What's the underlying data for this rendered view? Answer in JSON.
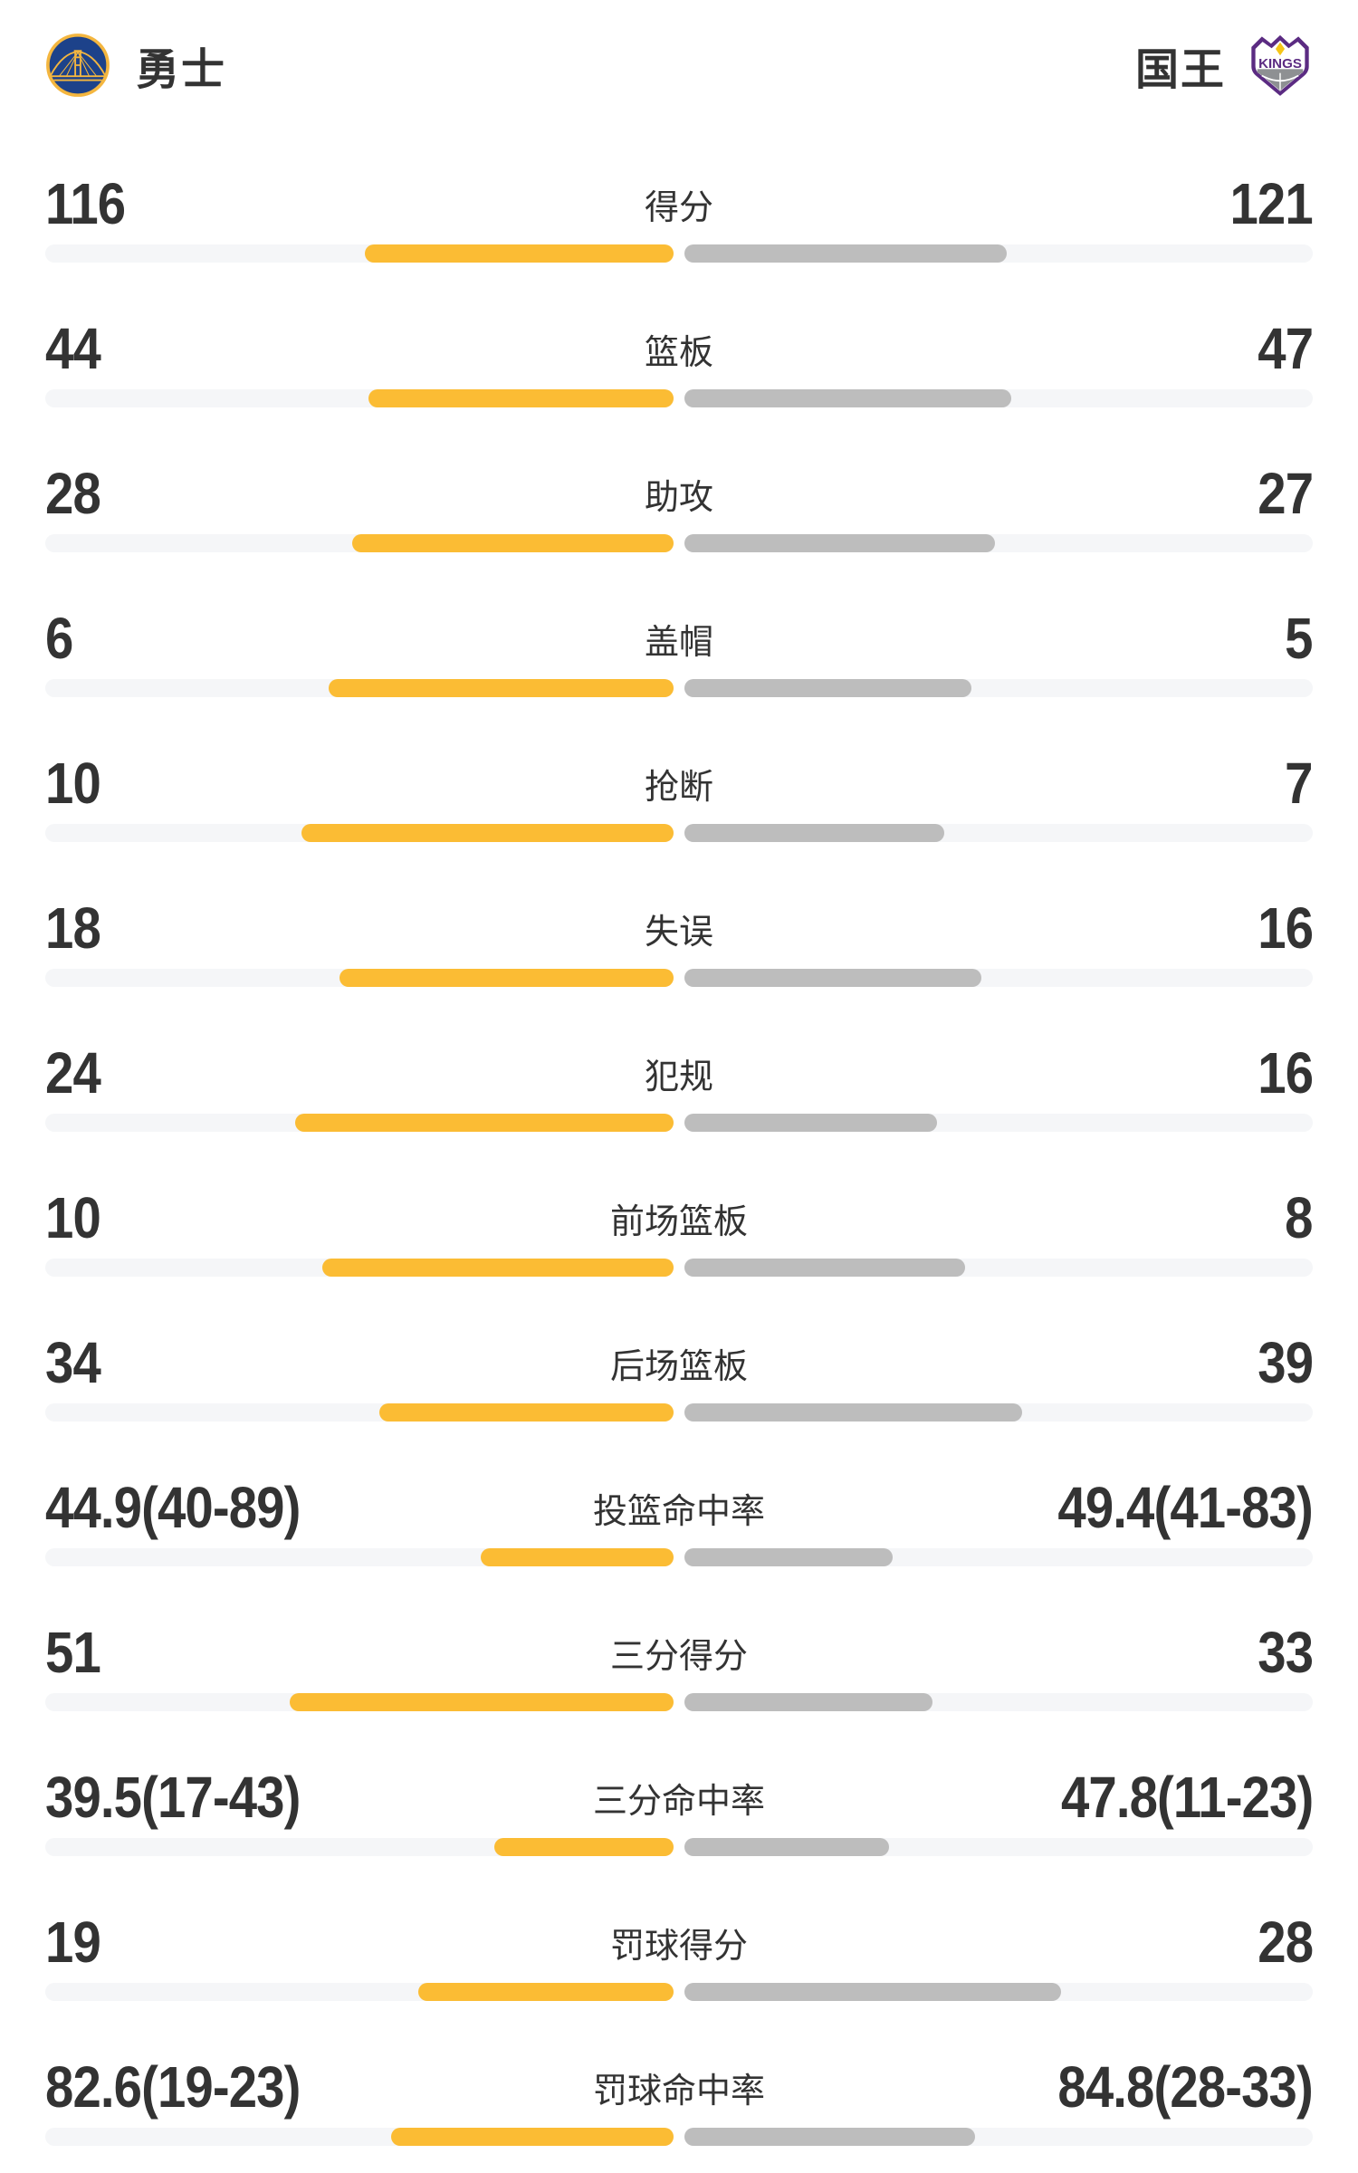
{
  "header": {
    "home": {
      "name": "勇士"
    },
    "away": {
      "name": "国王",
      "logo_text": "KINGS"
    }
  },
  "colors": {
    "home_bar": "#FBBC34",
    "away_bar": "#BDBDBD",
    "track": "#F5F6F8",
    "text": "#333333",
    "warriors_blue": "#1D428A",
    "warriors_gold": "#F4B63F",
    "kings_purple": "#5B2B82",
    "kings_gray": "#8E9093",
    "kings_yellow": "#F5C518"
  },
  "chart_data": {
    "type": "bar",
    "layout": "horizontal-paired-center-out",
    "legend_position": "none",
    "grid": false,
    "teams": [
      "勇士",
      "国王"
    ],
    "rows": [
      {
        "label": "得分",
        "left_display": "116",
        "right_display": "121",
        "left_value": 116,
        "right_value": 121,
        "left_bar_pct": 49.2,
        "right_bar_pct": 51.3
      },
      {
        "label": "篮板",
        "left_display": "44",
        "right_display": "47",
        "left_value": 44,
        "right_value": 47,
        "left_bar_pct": 48.6,
        "right_bar_pct": 52.0
      },
      {
        "label": "助攻",
        "left_display": "28",
        "right_display": "27",
        "left_value": 28,
        "right_value": 27,
        "left_bar_pct": 51.2,
        "right_bar_pct": 49.4
      },
      {
        "label": "盖帽",
        "left_display": "6",
        "right_display": "5",
        "left_value": 6,
        "right_value": 5,
        "left_bar_pct": 54.9,
        "right_bar_pct": 45.7
      },
      {
        "label": "抢断",
        "left_display": "10",
        "right_display": "7",
        "left_value": 10,
        "right_value": 7,
        "left_bar_pct": 59.2,
        "right_bar_pct": 41.4
      },
      {
        "label": "失误",
        "left_display": "18",
        "right_display": "16",
        "left_value": 18,
        "right_value": 16,
        "left_bar_pct": 53.2,
        "right_bar_pct": 47.3
      },
      {
        "label": "犯规",
        "left_display": "24",
        "right_display": "16",
        "left_value": 24,
        "right_value": 16,
        "left_bar_pct": 60.3,
        "right_bar_pct": 40.2
      },
      {
        "label": "前场篮板",
        "left_display": "10",
        "right_display": "8",
        "left_value": 10,
        "right_value": 8,
        "left_bar_pct": 55.9,
        "right_bar_pct": 44.7
      },
      {
        "label": "后场篮板",
        "left_display": "34",
        "right_display": "39",
        "left_value": 34,
        "right_value": 39,
        "left_bar_pct": 46.9,
        "right_bar_pct": 53.7
      },
      {
        "label": "投篮命中率",
        "left_display": "44.9(40-89)",
        "right_display": "49.4(41-83)",
        "left_value": 44.9,
        "right_value": 49.4,
        "left_made_att": "40-89",
        "right_made_att": "41-83",
        "left_bar_pct": 30.7,
        "right_bar_pct": 33.2
      },
      {
        "label": "三分得分",
        "left_display": "51",
        "right_display": "33",
        "left_value": 51,
        "right_value": 33,
        "left_bar_pct": 61.1,
        "right_bar_pct": 39.5
      },
      {
        "label": "三分命中率",
        "left_display": "39.5(17-43)",
        "right_display": "47.8(11-23)",
        "left_value": 39.5,
        "right_value": 47.8,
        "left_made_att": "17-43",
        "right_made_att": "11-23",
        "left_bar_pct": 28.6,
        "right_bar_pct": 32.5
      },
      {
        "label": "罚球得分",
        "left_display": "19",
        "right_display": "28",
        "left_value": 19,
        "right_value": 28,
        "left_bar_pct": 40.6,
        "right_bar_pct": 59.9
      },
      {
        "label": "罚球命中率",
        "left_display": "82.6(19-23)",
        "right_display": "84.8(28-33)",
        "left_value": 82.6,
        "right_value": 84.8,
        "left_made_att": "19-23",
        "right_made_att": "28-33",
        "left_bar_pct": 44.9,
        "right_bar_pct": 46.2
      }
    ]
  }
}
